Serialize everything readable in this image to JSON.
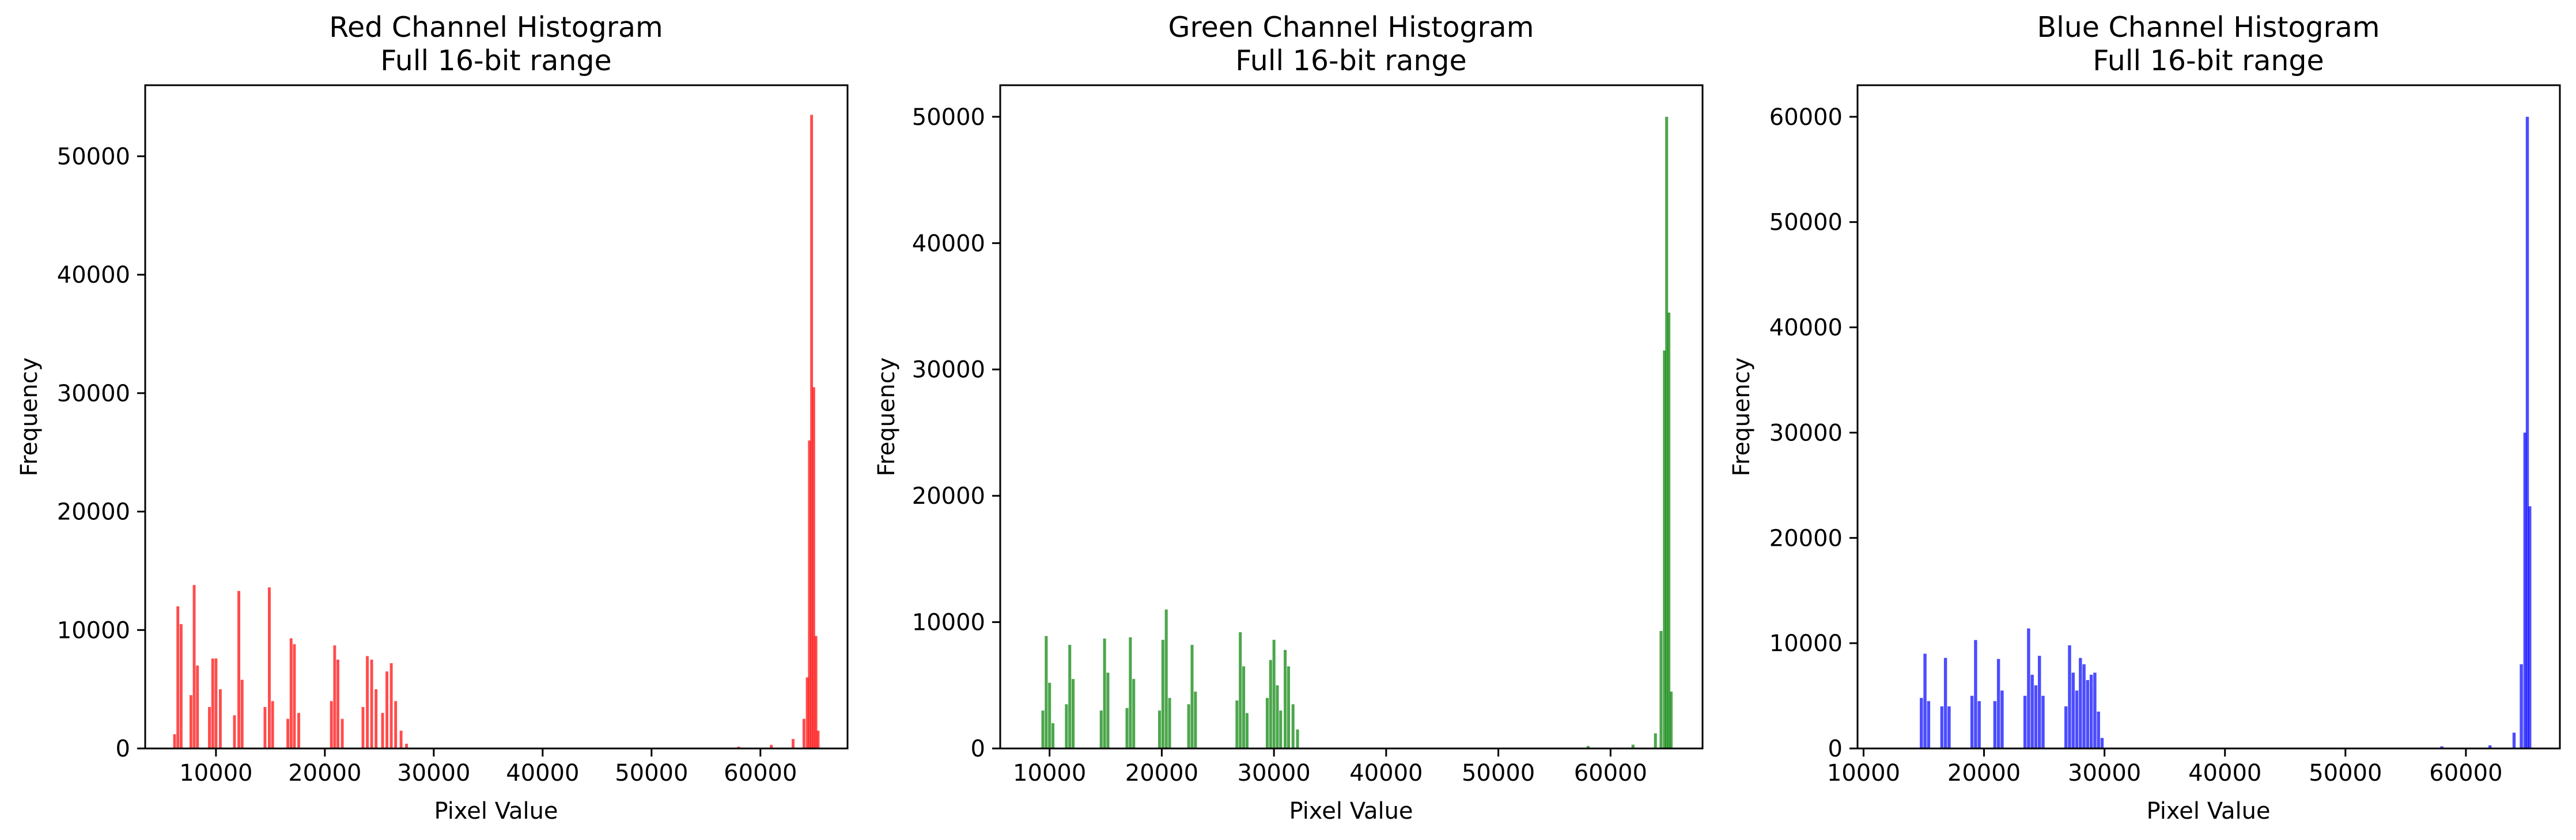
{
  "figure": {
    "panels": [
      {
        "title_line1": "Red Channel Histogram",
        "title_line2": "Full 16-bit range",
        "xlabel": "Pixel Value",
        "ylabel": "Frequency",
        "xticks": [
          "10000",
          "20000",
          "30000",
          "40000",
          "50000",
          "60000"
        ],
        "yticks": [
          "0",
          "10000",
          "20000",
          "30000",
          "40000",
          "50000"
        ]
      },
      {
        "title_line1": "Green Channel Histogram",
        "title_line2": "Full 16-bit range",
        "xlabel": "Pixel Value",
        "ylabel": "Frequency",
        "xticks": [
          "10000",
          "20000",
          "30000",
          "40000",
          "50000",
          "60000"
        ],
        "yticks": [
          "0",
          "10000",
          "20000",
          "30000",
          "40000",
          "50000"
        ]
      },
      {
        "title_line1": "Blue Channel Histogram",
        "title_line2": "Full 16-bit range",
        "xlabel": "Pixel Value",
        "ylabel": "Frequency",
        "xticks": [
          "10000",
          "20000",
          "30000",
          "40000",
          "50000",
          "60000"
        ],
        "yticks": [
          "0",
          "10000",
          "20000",
          "30000",
          "40000",
          "50000",
          "60000"
        ]
      }
    ]
  },
  "chart_data": [
    {
      "type": "bar",
      "title": "Red Channel Histogram\nFull 16-bit range",
      "xlabel": "Pixel Value",
      "ylabel": "Frequency",
      "color": "#ff0000",
      "alpha": 0.7,
      "xlim": [
        3500,
        68000
      ],
      "ylim": [
        0,
        56000
      ],
      "grid": false,
      "x": [
        6200,
        6500,
        6800,
        7700,
        8000,
        8300,
        9400,
        9700,
        10000,
        10400,
        11700,
        12100,
        12400,
        14500,
        14900,
        15200,
        16600,
        16900,
        17200,
        17600,
        20600,
        20900,
        21200,
        21600,
        23500,
        23900,
        24300,
        24700,
        25300,
        25700,
        26100,
        26500,
        27000,
        27500,
        58000,
        61000,
        63000,
        64000,
        64300,
        64500,
        64700,
        64900,
        65100,
        65300
      ],
      "values": [
        1200,
        12000,
        10500,
        4500,
        13800,
        7000,
        3500,
        7600,
        7600,
        5000,
        2800,
        13300,
        5800,
        3500,
        13600,
        4000,
        2500,
        9300,
        8800,
        3000,
        4000,
        8700,
        7500,
        2500,
        3500,
        7800,
        7500,
        5000,
        3000,
        6500,
        7200,
        4000,
        1500,
        400,
        150,
        300,
        800,
        2500,
        6000,
        26000,
        53500,
        30500,
        9500,
        1500
      ]
    },
    {
      "type": "bar",
      "title": "Green Channel Histogram\nFull 16-bit range",
      "xlabel": "Pixel Value",
      "ylabel": "Frequency",
      "color": "#008000",
      "alpha": 0.7,
      "xlim": [
        5600,
        68200
      ],
      "ylim": [
        0,
        52500
      ],
      "grid": false,
      "x": [
        9400,
        9700,
        10000,
        10300,
        11500,
        11800,
        12100,
        14600,
        14900,
        15200,
        16900,
        17200,
        17500,
        19800,
        20100,
        20400,
        20700,
        22400,
        22700,
        23000,
        26700,
        27000,
        27300,
        27600,
        29400,
        29700,
        30000,
        30300,
        30600,
        31000,
        31300,
        31700,
        32100,
        58000,
        62000,
        64000,
        64500,
        64800,
        65000,
        65200,
        65400
      ],
      "values": [
        3000,
        8900,
        5200,
        2000,
        3500,
        8200,
        5500,
        3000,
        8700,
        6000,
        3200,
        8800,
        5500,
        3000,
        8600,
        11000,
        4000,
        3500,
        8200,
        4500,
        3800,
        9200,
        6500,
        2800,
        4000,
        7000,
        8600,
        5000,
        3000,
        7800,
        6500,
        3500,
        1500,
        200,
        300,
        1200,
        9300,
        31500,
        50000,
        34500,
        4500
      ]
    },
    {
      "type": "bar",
      "title": "Blue Channel Histogram\nFull 16-bit range",
      "xlabel": "Pixel Value",
      "ylabel": "Frequency",
      "color": "#0000ff",
      "alpha": 0.7,
      "xlim": [
        9500,
        67800
      ],
      "ylim": [
        0,
        63000
      ],
      "grid": false,
      "x": [
        14800,
        15100,
        15400,
        16500,
        16800,
        17100,
        19000,
        19300,
        19600,
        20900,
        21200,
        21500,
        23400,
        23700,
        24000,
        24300,
        24600,
        24900,
        26800,
        27100,
        27400,
        27700,
        28000,
        28300,
        28600,
        28900,
        29200,
        29500,
        29800,
        58000,
        62000,
        64000,
        64600,
        64900,
        65100,
        65300
      ],
      "values": [
        4800,
        9000,
        4500,
        4000,
        8600,
        4000,
        5000,
        10300,
        4500,
        4500,
        8500,
        5500,
        5000,
        11400,
        7000,
        6000,
        8800,
        5000,
        4000,
        9800,
        7200,
        5500,
        8600,
        8000,
        6500,
        7000,
        7200,
        3500,
        1000,
        200,
        300,
        1500,
        8000,
        30000,
        60000,
        23000
      ]
    }
  ]
}
